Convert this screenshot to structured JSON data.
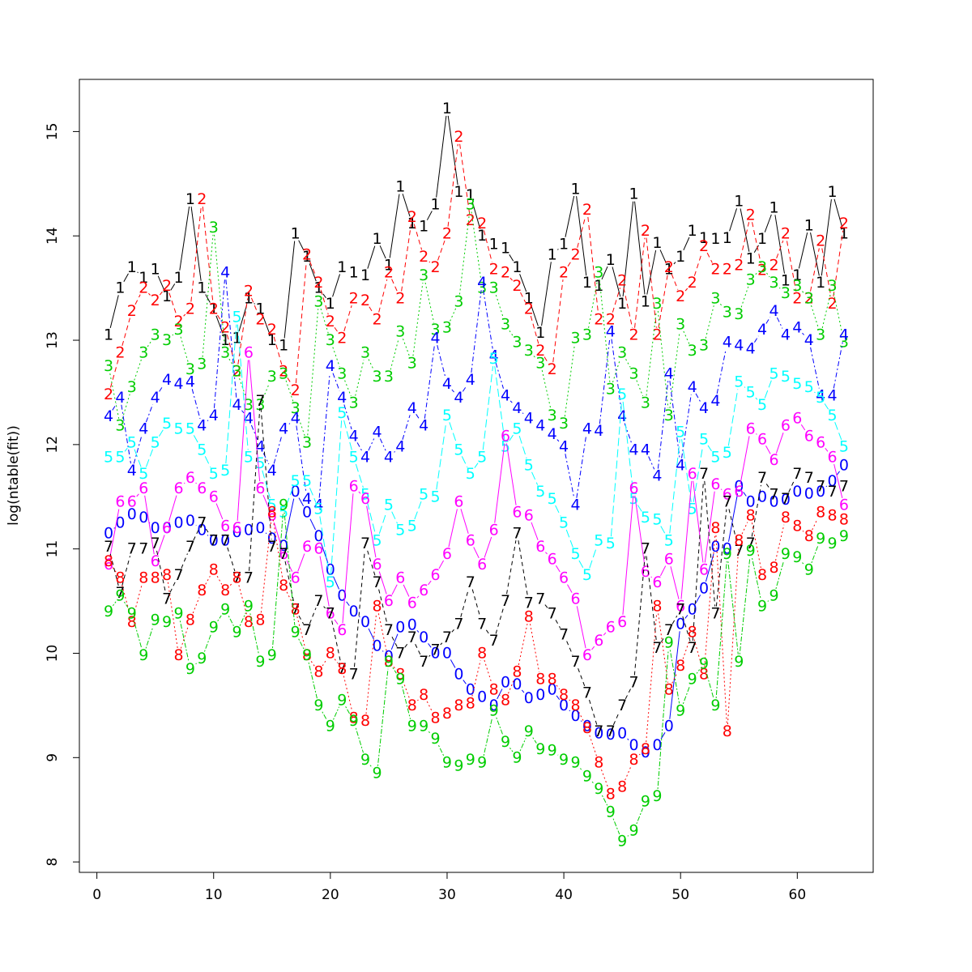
{
  "chart_data": {
    "type": "line",
    "xlabel": "",
    "ylabel": "log(ntable(fit))",
    "xlim": [
      -1.5,
      66.5
    ],
    "ylim": [
      7.9,
      15.5
    ],
    "xticks": [
      0,
      10,
      20,
      30,
      40,
      50,
      60
    ],
    "yticks": [
      8,
      9,
      10,
      11,
      12,
      13,
      14,
      15
    ],
    "grid": false,
    "legend": "none",
    "x": [
      1,
      2,
      3,
      4,
      5,
      6,
      7,
      8,
      9,
      10,
      11,
      12,
      13,
      14,
      15,
      16,
      17,
      18,
      19,
      20,
      21,
      22,
      23,
      24,
      25,
      26,
      27,
      28,
      29,
      30,
      31,
      32,
      33,
      34,
      35,
      36,
      37,
      38,
      39,
      40,
      41,
      42,
      43,
      44,
      45,
      46,
      47,
      48,
      49,
      50,
      51,
      52,
      53,
      54,
      55,
      56,
      57,
      58,
      59,
      60,
      61,
      62,
      63,
      64
    ],
    "series": [
      {
        "label": "0",
        "color": "#0000ff",
        "dash": "none",
        "values": [
          11.15,
          11.25,
          11.33,
          11.3,
          11.2,
          11.2,
          11.25,
          11.27,
          11.18,
          11.08,
          11.08,
          11.16,
          11.18,
          11.2,
          11.1,
          11.03,
          11.55,
          11.35,
          11.12,
          10.8,
          10.55,
          10.4,
          10.3,
          10.07,
          9.97,
          10.25,
          10.27,
          10.15,
          10.0,
          10.0,
          9.8,
          9.65,
          9.58,
          9.5,
          9.72,
          9.7,
          9.57,
          9.6,
          9.65,
          9.5,
          9.4,
          9.3,
          9.23,
          9.22,
          9.23,
          9.12,
          9.05,
          9.12,
          9.3,
          10.28,
          10.42,
          10.62,
          11.02,
          11.0,
          11.6,
          11.45,
          11.5,
          11.45,
          11.47,
          11.55,
          11.53,
          11.55,
          11.65,
          11.8
        ]
      },
      {
        "label": "1",
        "color": "#000000",
        "dash": "none",
        "values": [
          13.05,
          13.5,
          13.7,
          13.6,
          13.68,
          13.42,
          13.6,
          14.35,
          13.5,
          13.3,
          13.0,
          13.02,
          13.4,
          13.3,
          13.0,
          12.95,
          14.02,
          13.8,
          13.5,
          13.35,
          13.7,
          13.65,
          13.62,
          13.97,
          13.72,
          14.47,
          14.12,
          14.09,
          14.3,
          15.22,
          14.42,
          14.39,
          14.0,
          13.92,
          13.88,
          13.7,
          13.4,
          13.07,
          13.82,
          13.92,
          14.45,
          13.55,
          13.52,
          13.77,
          13.35,
          14.4,
          13.37,
          13.93,
          13.68,
          13.8,
          14.05,
          13.98,
          13.97,
          13.98,
          14.33,
          13.78,
          13.97,
          14.27,
          13.57,
          13.62,
          14.1,
          13.55,
          14.42,
          14.02
        ]
      },
      {
        "label": "2",
        "color": "#ff0000",
        "dash": "6,4",
        "values": [
          12.48,
          12.88,
          13.28,
          13.5,
          13.38,
          13.52,
          13.18,
          13.3,
          14.35,
          13.3,
          13.12,
          12.7,
          13.47,
          13.2,
          13.1,
          12.7,
          12.52,
          13.82,
          13.55,
          13.18,
          13.02,
          13.4,
          13.38,
          13.2,
          13.65,
          13.4,
          14.18,
          13.8,
          13.7,
          14.02,
          14.95,
          14.15,
          14.12,
          13.68,
          13.65,
          13.52,
          13.3,
          12.9,
          12.72,
          13.65,
          13.82,
          14.25,
          13.2,
          13.2,
          13.57,
          13.05,
          14.05,
          13.05,
          13.7,
          13.42,
          13.55,
          13.9,
          13.68,
          13.68,
          13.72,
          14.2,
          13.67,
          13.72,
          14.02,
          13.4,
          13.4,
          13.95,
          13.35,
          14.12
        ]
      },
      {
        "label": "3",
        "color": "#00cd00",
        "dash": "2,3",
        "values": [
          12.75,
          12.18,
          12.55,
          12.88,
          13.05,
          13.0,
          13.1,
          12.72,
          12.77,
          14.08,
          12.88,
          12.7,
          12.38,
          12.38,
          12.65,
          12.68,
          12.35,
          12.02,
          13.37,
          13.0,
          12.68,
          12.4,
          12.88,
          12.65,
          12.65,
          13.08,
          12.78,
          13.62,
          13.1,
          13.12,
          13.37,
          14.3,
          13.5,
          13.5,
          13.15,
          12.98,
          12.9,
          12.78,
          12.28,
          12.2,
          13.02,
          13.05,
          13.65,
          12.53,
          12.88,
          12.68,
          12.4,
          13.35,
          12.28,
          13.15,
          12.9,
          12.95,
          13.4,
          13.27,
          13.25,
          13.58,
          13.7,
          13.55,
          13.45,
          13.52,
          13.4,
          13.05,
          13.52,
          12.98
        ]
      },
      {
        "label": "4",
        "color": "#0000ff",
        "dash": "6,3,2,3",
        "values": [
          12.27,
          12.45,
          11.75,
          12.15,
          12.45,
          12.62,
          12.58,
          12.6,
          12.18,
          12.28,
          13.65,
          12.38,
          12.25,
          11.98,
          11.75,
          12.15,
          12.25,
          11.48,
          11.42,
          12.75,
          12.45,
          12.08,
          11.88,
          12.12,
          11.88,
          11.98,
          12.35,
          12.18,
          13.02,
          12.58,
          12.45,
          12.62,
          13.55,
          12.85,
          12.47,
          12.35,
          12.25,
          12.18,
          12.1,
          11.98,
          11.42,
          12.15,
          12.13,
          13.08,
          12.27,
          11.95,
          11.95,
          11.7,
          12.68,
          11.8,
          12.55,
          12.35,
          12.42,
          12.98,
          12.95,
          12.92,
          13.1,
          13.28,
          13.05,
          13.12,
          13.0,
          12.47,
          12.47,
          13.05
        ]
      },
      {
        "label": "5",
        "color": "#00ffff",
        "dash": "10,4",
        "values": [
          11.88,
          11.88,
          12.02,
          11.72,
          12.02,
          12.2,
          12.15,
          12.15,
          11.95,
          11.72,
          11.75,
          13.22,
          11.88,
          11.82,
          11.42,
          11.35,
          11.65,
          11.65,
          11.38,
          10.68,
          12.3,
          11.88,
          11.52,
          11.08,
          11.42,
          11.18,
          11.22,
          11.52,
          11.5,
          12.28,
          11.95,
          11.72,
          11.88,
          12.82,
          11.98,
          12.15,
          11.8,
          11.55,
          11.48,
          11.25,
          10.95,
          10.75,
          11.08,
          11.05,
          12.48,
          11.48,
          11.3,
          11.28,
          11.08,
          12.12,
          11.38,
          12.05,
          11.88,
          11.92,
          12.6,
          12.5,
          12.38,
          12.68,
          12.65,
          12.58,
          12.55,
          12.45,
          12.28,
          11.98
        ]
      },
      {
        "label": "6",
        "color": "#ff00ff",
        "dash": "none",
        "values": [
          10.85,
          11.45,
          11.45,
          11.58,
          10.88,
          11.2,
          11.58,
          11.68,
          11.58,
          11.5,
          11.22,
          11.2,
          12.88,
          11.58,
          11.32,
          10.95,
          10.72,
          11.02,
          11.0,
          10.38,
          10.22,
          11.6,
          11.48,
          10.85,
          10.5,
          10.72,
          10.48,
          10.6,
          10.75,
          10.95,
          11.45,
          11.08,
          10.85,
          11.18,
          12.08,
          11.35,
          11.32,
          11.02,
          10.9,
          10.72,
          10.52,
          9.98,
          10.12,
          10.25,
          10.3,
          11.58,
          10.78,
          10.68,
          10.9,
          10.45,
          11.72,
          10.8,
          11.62,
          11.52,
          11.55,
          12.15,
          12.05,
          11.85,
          12.18,
          12.25,
          12.08,
          12.02,
          11.88,
          11.42
        ]
      },
      {
        "label": "7",
        "color": "#000000",
        "dash": "5,4",
        "values": [
          11.02,
          10.58,
          11.0,
          11.0,
          11.05,
          10.52,
          10.75,
          11.02,
          11.25,
          11.08,
          11.08,
          10.72,
          10.72,
          12.42,
          11.02,
          10.95,
          10.42,
          10.22,
          10.5,
          10.38,
          9.85,
          9.8,
          11.05,
          10.68,
          10.22,
          10.0,
          10.15,
          9.92,
          10.03,
          10.15,
          10.28,
          10.68,
          10.28,
          10.12,
          10.5,
          11.15,
          10.48,
          10.52,
          10.38,
          10.18,
          9.92,
          9.62,
          9.25,
          9.25,
          9.5,
          9.72,
          11.0,
          10.05,
          10.22,
          10.42,
          10.05,
          11.72,
          10.38,
          11.45,
          10.98,
          11.05,
          11.68,
          11.52,
          11.48,
          11.72,
          11.68,
          11.6,
          11.55,
          11.6
        ]
      },
      {
        "label": "8",
        "color": "#ff0000",
        "dash": "2,3",
        "values": [
          10.88,
          10.72,
          10.3,
          10.72,
          10.72,
          10.75,
          9.98,
          10.32,
          10.6,
          10.8,
          10.6,
          10.72,
          10.3,
          10.32,
          11.35,
          10.65,
          10.42,
          9.98,
          9.82,
          10.0,
          9.85,
          9.38,
          9.35,
          10.45,
          9.92,
          9.8,
          9.5,
          9.6,
          9.38,
          9.42,
          9.5,
          9.52,
          10.0,
          9.65,
          9.55,
          9.82,
          10.35,
          9.75,
          9.75,
          9.6,
          9.5,
          9.28,
          8.95,
          8.65,
          8.72,
          8.98,
          9.08,
          10.45,
          9.65,
          9.88,
          10.2,
          9.8,
          11.2,
          9.25,
          11.08,
          11.32,
          10.75,
          10.82,
          11.3,
          11.22,
          11.12,
          11.35,
          11.32,
          11.28
        ]
      },
      {
        "label": "9",
        "color": "#00cd00",
        "dash": "2,2,6,2",
        "values": [
          10.4,
          10.55,
          10.38,
          9.98,
          10.32,
          10.3,
          10.38,
          9.85,
          9.95,
          10.25,
          10.42,
          10.2,
          10.45,
          9.92,
          9.98,
          11.42,
          10.2,
          9.98,
          9.5,
          9.3,
          9.55,
          9.35,
          8.98,
          8.85,
          9.92,
          9.75,
          9.3,
          9.3,
          9.18,
          8.95,
          8.92,
          8.98,
          8.95,
          9.45,
          9.15,
          9.0,
          9.25,
          9.08,
          9.07,
          8.98,
          8.95,
          8.82,
          8.7,
          8.48,
          8.2,
          8.3,
          8.58,
          8.63,
          10.1,
          9.45,
          9.75,
          9.9,
          9.5,
          10.95,
          9.92,
          10.98,
          10.45,
          10.55,
          10.95,
          10.92,
          10.8,
          11.1,
          11.05,
          11.12
        ]
      }
    ]
  }
}
